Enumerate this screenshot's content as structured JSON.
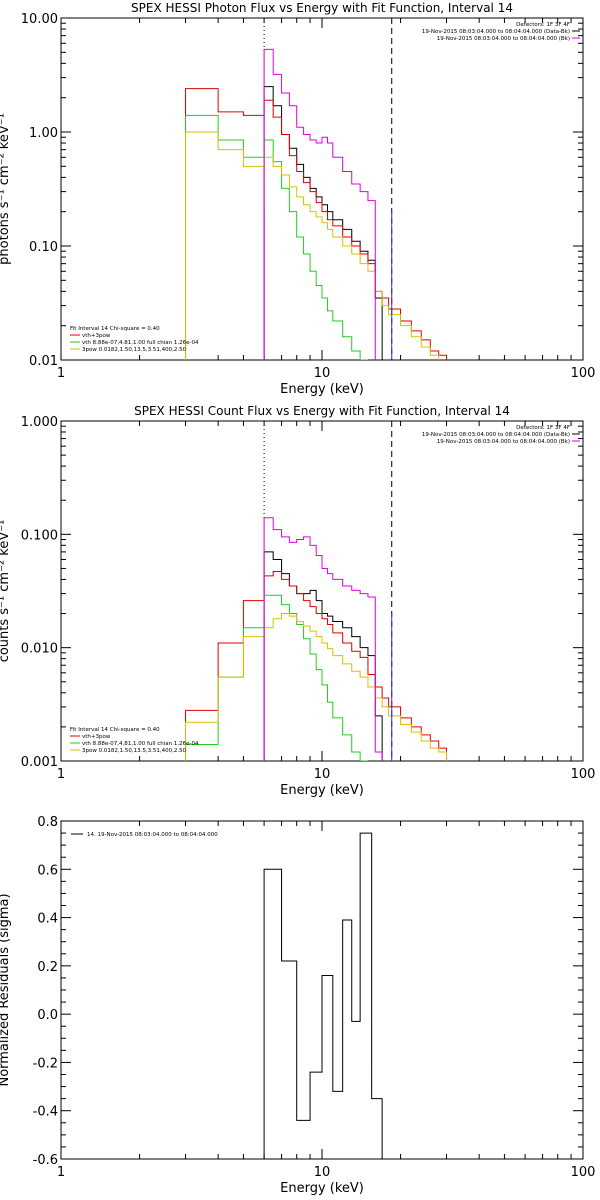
{
  "colors": {
    "black": "#000000",
    "red": "#e00000",
    "green": "#22cc22",
    "yellow": "#d8c000",
    "magenta": "#e000e0",
    "blue": "#3030e0"
  },
  "chart_data": [
    {
      "type": "line",
      "title": "SPEX HESSI Photon Flux vs Energy with Fit Function, Interval 14",
      "xlabel": "Energy (keV)",
      "ylabel": "photons s⁻¹ cm⁻² keV⁻¹",
      "xscale": "log",
      "yscale": "log",
      "xlim": [
        1,
        100
      ],
      "ylim": [
        0.01,
        10
      ],
      "xticks": [
        "1",
        "10",
        "100"
      ],
      "yticks": [
        "0.01",
        "0.10",
        "1.00",
        "10.00"
      ],
      "vlines": [
        {
          "x": 6.0,
          "style": "dotted"
        },
        {
          "x": 18.5,
          "style": "dashed"
        }
      ],
      "markers": [
        {
          "x": 6.0,
          "color": "magenta"
        },
        {
          "x": 18.5,
          "color": "blue"
        }
      ],
      "header": [
        "Detectors: 1F 3F 4F",
        "19-Nov-2015 08:03:04.000 to 08:04:04.000 (Data-Bk)",
        "19-Nov-2015 08:03:04.000 to 08:04:04.000 (Bk)"
      ],
      "legend": [
        "Fit Interval 14    Chi-square = 0.40",
        "vth+3pow",
        "vth 8.88e-07,4.81,1.00  full chian 1.26e-04",
        "3pow 0.0182,1.50,13.5,3.51,400,2.50"
      ],
      "edges": [
        3.0,
        3.5,
        4.0,
        4.5,
        5.0,
        5.5,
        6.0,
        6.5,
        7.0,
        7.5,
        8.0,
        8.5,
        9.0,
        9.5,
        10.0,
        10.5,
        11.0,
        12.0,
        13.0,
        14.0,
        15.0,
        16.0,
        17.0,
        18.0,
        20.0,
        22.0,
        24.0,
        26.0,
        28.0,
        30.0
      ],
      "series": [
        {
          "name": "Data-Bk",
          "color": "black",
          "start": 6,
          "values": [
            2.5,
            1.7,
            0.95,
            0.72,
            0.52,
            0.4,
            0.32,
            0.27,
            0.23,
            0.2,
            0.17,
            0.14,
            0.11,
            0.09,
            0.075,
            0.035
          ]
        },
        {
          "name": "vth+3pow",
          "color": "red",
          "start": 0,
          "values": [
            2.4,
            2.4,
            1.5,
            1.5,
            1.4,
            1.4,
            1.9,
            1.35,
            0.95,
            0.62,
            0.45,
            0.36,
            0.3,
            0.24,
            0.2,
            0.17,
            0.15,
            0.12,
            0.1,
            0.085,
            0.07,
            0.04,
            0.035,
            0.028,
            0.022,
            0.018,
            0.015,
            0.012,
            0.011
          ]
        },
        {
          "name": "vth",
          "color": "green",
          "start": 0,
          "values": [
            1.4,
            1.4,
            0.85,
            0.85,
            0.6,
            0.6,
            0.85,
            0.55,
            0.32,
            0.2,
            0.12,
            0.085,
            0.06,
            0.045,
            0.035,
            0.027,
            0.022,
            0.016,
            0.012,
            0.01
          ]
        },
        {
          "name": "3pow",
          "color": "yellow",
          "start": 0,
          "values": [
            1.0,
            1.0,
            0.7,
            0.7,
            0.5,
            0.5,
            0.6,
            0.5,
            0.42,
            0.33,
            0.27,
            0.23,
            0.2,
            0.18,
            0.16,
            0.14,
            0.12,
            0.1,
            0.085,
            0.07,
            0.06,
            0.04,
            0.03,
            0.025,
            0.02,
            0.016,
            0.013,
            0.011,
            0.0095
          ]
        },
        {
          "name": "Bk",
          "color": "magenta",
          "start": 6,
          "values": [
            5.3,
            3.2,
            2.2,
            1.7,
            1.1,
            0.95,
            0.85,
            0.8,
            0.9,
            0.8,
            0.6,
            0.45,
            0.35,
            0.3,
            0.25,
            0.006
          ]
        }
      ]
    },
    {
      "type": "line",
      "title": "SPEX HESSI Count Flux vs Energy with Fit Function, Interval 14",
      "xlabel": "Energy (keV)",
      "ylabel": "counts s⁻¹ cm⁻² keV⁻¹",
      "xscale": "log",
      "yscale": "log",
      "xlim": [
        1,
        100
      ],
      "ylim": [
        0.001,
        1
      ],
      "xticks": [
        "1",
        "10",
        "100"
      ],
      "yticks": [
        "0.001",
        "0.010",
        "0.100",
        "1.000"
      ],
      "vlines": [
        {
          "x": 6.0,
          "style": "dotted"
        },
        {
          "x": 18.5,
          "style": "dashed"
        }
      ],
      "markers": [
        {
          "x": 6.0,
          "color": "magenta"
        },
        {
          "x": 18.5,
          "color": "blue"
        }
      ],
      "header": [
        "Detectors: 1F 3F 4F",
        "19-Nov-2015 08:03:04.000 to 08:04:04.000 (Data-Bk)",
        "19-Nov-2015 08:03:04.000 to 08:04:04.000 (Bk)"
      ],
      "legend": [
        "Fit Interval 14    Chi-square = 0.40",
        "vth+3pow",
        "vth 8.88e-07,4.81,1.00  full chian 1.26e-04",
        "3pow 0.0182,1.50,13.5,3.51,400,2.50"
      ],
      "edges": [
        3.0,
        3.5,
        4.0,
        4.5,
        5.0,
        5.5,
        6.0,
        6.5,
        7.0,
        7.5,
        8.0,
        8.5,
        9.0,
        9.5,
        10.0,
        10.5,
        11.0,
        12.0,
        13.0,
        14.0,
        15.0,
        16.0,
        17.0,
        18.0,
        20.0,
        22.0,
        24.0,
        26.0,
        28.0,
        30.0
      ],
      "series": [
        {
          "name": "Data-Bk",
          "color": "black",
          "start": 6,
          "values": [
            0.07,
            0.06,
            0.045,
            0.035,
            0.03,
            0.03,
            0.032,
            0.026,
            0.02,
            0.019,
            0.017,
            0.015,
            0.0125,
            0.01,
            0.0085,
            0.0025
          ]
        },
        {
          "name": "vth+3pow",
          "color": "red",
          "start": 0,
          "values": [
            0.0028,
            0.0028,
            0.011,
            0.011,
            0.026,
            0.026,
            0.043,
            0.047,
            0.04,
            0.035,
            0.03,
            0.026,
            0.023,
            0.02,
            0.018,
            0.016,
            0.0135,
            0.011,
            0.0093,
            0.0082,
            0.0058,
            0.0045,
            0.0036,
            0.003,
            0.0024,
            0.002,
            0.0017,
            0.0015,
            0.0013
          ]
        },
        {
          "name": "vth",
          "color": "green",
          "start": 0,
          "values": [
            0.0014,
            0.0014,
            0.0055,
            0.0055,
            0.015,
            0.015,
            0.029,
            0.029,
            0.024,
            0.02,
            0.016,
            0.012,
            0.0088,
            0.0064,
            0.0047,
            0.0033,
            0.0024,
            0.0017,
            0.0012,
            0.001
          ]
        },
        {
          "name": "3pow",
          "color": "yellow",
          "start": 0,
          "values": [
            0.0022,
            0.0022,
            0.0055,
            0.0055,
            0.0125,
            0.0125,
            0.015,
            0.018,
            0.02,
            0.019,
            0.017,
            0.0155,
            0.014,
            0.0125,
            0.011,
            0.0098,
            0.0085,
            0.0072,
            0.0062,
            0.0055,
            0.0045,
            0.0036,
            0.003,
            0.0025,
            0.0021,
            0.0018,
            0.0015,
            0.0013,
            0.0012
          ]
        },
        {
          "name": "Bk",
          "color": "magenta",
          "start": 6,
          "values": [
            0.14,
            0.11,
            0.095,
            0.085,
            0.09,
            0.095,
            0.08,
            0.065,
            0.05,
            0.045,
            0.04,
            0.035,
            0.032,
            0.03,
            0.028,
            0.0012
          ]
        }
      ]
    },
    {
      "type": "line",
      "title": "",
      "xlabel": "Energy (keV)",
      "ylabel": "Normalized Residuals (sigma)",
      "xscale": "log",
      "yscale": "linear",
      "xlim": [
        1,
        100
      ],
      "ylim": [
        -0.6,
        0.8
      ],
      "xticks": [
        "1",
        "10",
        "100"
      ],
      "yticks": [
        "-0.6",
        "-0.4",
        "-0.2",
        "0.0",
        "0.2",
        "0.4",
        "0.6",
        "0.8"
      ],
      "legend": [
        "14. 19-Nov-2015 08:03:04.000 to 08:04:04.000"
      ],
      "edges": [
        6.0,
        7.0,
        8.0,
        9.0,
        10.0,
        11.0,
        12.0,
        13.0,
        14.0,
        15.5,
        17.0,
        18.5
      ],
      "series": [
        {
          "name": "",
          "color": "black",
          "values": [
            0.6,
            0.22,
            -0.44,
            -0.24,
            0.16,
            -0.32,
            0.39,
            -0.03,
            0.75,
            -0.35,
            -0.6
          ]
        }
      ]
    }
  ]
}
